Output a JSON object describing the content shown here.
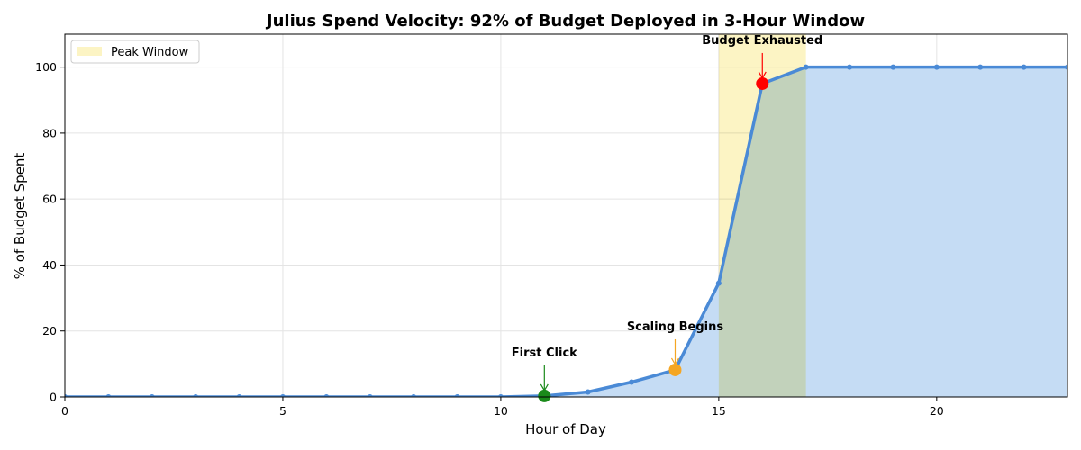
{
  "chart_data": {
    "type": "line",
    "title": "Julius Spend Velocity: 92% of Budget Deployed in 3-Hour Window",
    "xlabel": "Hour of Day",
    "ylabel": "% of Budget Spent",
    "xlim": [
      0,
      23
    ],
    "ylim": [
      0,
      110
    ],
    "xticks": [
      0,
      5,
      10,
      15,
      20
    ],
    "yticks": [
      0,
      20,
      40,
      60,
      80,
      100
    ],
    "grid": true,
    "legend_position": "top-left",
    "series": [
      {
        "name": "% of Budget Spent",
        "color": "#4a8ad6",
        "fill_color": "#c5dcf4",
        "x": [
          0,
          1,
          2,
          3,
          4,
          5,
          6,
          7,
          8,
          9,
          10,
          11,
          12,
          13,
          14,
          15,
          16,
          17,
          18,
          19,
          20,
          21,
          22,
          23
        ],
        "values": [
          0,
          0,
          0,
          0,
          0,
          0,
          0,
          0,
          0,
          0,
          0,
          0.3,
          1.5,
          4.5,
          8.2,
          34.5,
          95,
          100,
          100,
          100,
          100,
          100,
          100,
          100
        ]
      }
    ],
    "shaded_regions": [
      {
        "label": "Peak Window",
        "x_start": 15,
        "x_end": 17,
        "color": "#fcf4c4"
      }
    ],
    "annotations": [
      {
        "text": "First Click",
        "x": 11,
        "y": 0.3,
        "marker_color": "#1a8a1a"
      },
      {
        "text": "Scaling Begins",
        "x": 14,
        "y": 8.2,
        "marker_color": "#f5a623"
      },
      {
        "text": "Budget Exhausted",
        "x": 16,
        "y": 95,
        "marker_color": "#ff0000"
      }
    ]
  }
}
